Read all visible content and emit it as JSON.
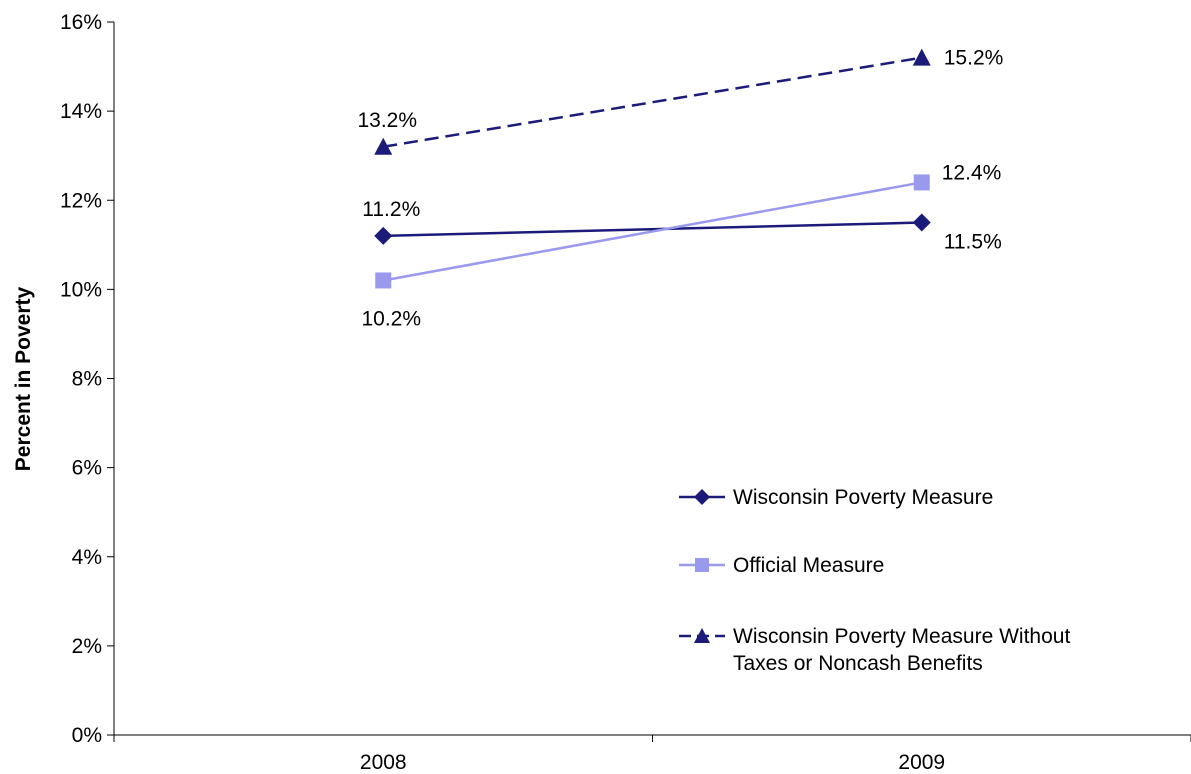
{
  "chart_data": {
    "type": "line",
    "title": "",
    "xlabel": "",
    "ylabel": "Percent in Poverty",
    "categories": [
      "2008",
      "2009"
    ],
    "ylim": [
      0,
      16
    ],
    "yticks": [
      0,
      2,
      4,
      6,
      8,
      10,
      12,
      14,
      16
    ],
    "ytick_labels": [
      "0%",
      "2%",
      "4%",
      "6%",
      "8%",
      "10%",
      "12%",
      "14%",
      "16%"
    ],
    "grid": false,
    "legend_position": "lower-right",
    "series": [
      {
        "name": "Wisconsin Poverty Measure",
        "values": [
          11.2,
          11.5
        ],
        "labels": [
          "11.2%",
          "11.5%"
        ],
        "color": "#1b1b7a",
        "marker": "diamond",
        "dash": "solid"
      },
      {
        "name": "Official Measure",
        "values": [
          10.2,
          12.4
        ],
        "labels": [
          "10.2%",
          "12.4%"
        ],
        "color": "#9999ee",
        "marker": "square",
        "dash": "solid"
      },
      {
        "name": "Wisconsin Poverty Measure Without Taxes or Noncash Benefits",
        "legend_lines": [
          "Wisconsin Poverty Measure Without",
          "Taxes or Noncash Benefits"
        ],
        "values": [
          13.2,
          15.2
        ],
        "labels": [
          "13.2%",
          "15.2%"
        ],
        "color": "#1b1b7a",
        "marker": "triangle",
        "dash": "dashed"
      }
    ]
  }
}
